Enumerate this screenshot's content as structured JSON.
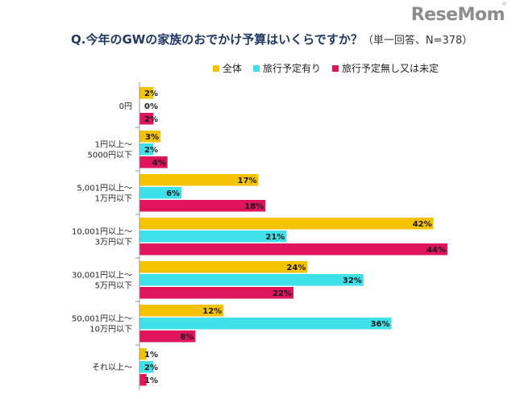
{
  "logo": "ReseMom",
  "title": "Q.今年のGWの家族のおでかけ予算はいくらですか？",
  "subtitle": "（単一回答、N=378）",
  "chart_data": {
    "type": "bar",
    "orientation": "horizontal",
    "xlim": [
      0,
      44
    ],
    "legend_position": "top-right",
    "categories": [
      [
        "0円"
      ],
      [
        "1円以上～",
        "5000円以下"
      ],
      [
        "5,001円以上～",
        "1万円以下"
      ],
      [
        "10,001円以上～",
        "3万円以下"
      ],
      [
        "30,001円以上～",
        "5万円以下"
      ],
      [
        "50,001円以上～",
        "10万円以下"
      ],
      [
        "それ以上～"
      ]
    ],
    "series": [
      {
        "name": "全体",
        "color": "#f5c200",
        "values": [
          2,
          3,
          17,
          42,
          24,
          12,
          1
        ],
        "labels": [
          "2%",
          "3%",
          "17%",
          "42%",
          "24%",
          "12%",
          "1%"
        ]
      },
      {
        "name": "旅行予定有り",
        "color": "#3ee0ea",
        "values": [
          0,
          2,
          6,
          21,
          32,
          36,
          2
        ],
        "labels": [
          "0%",
          "2%",
          "6%",
          "21%",
          "32%",
          "36%",
          "2%"
        ]
      },
      {
        "name": "旅行予定無し又は未定",
        "color": "#e0145a",
        "values": [
          2,
          4,
          18,
          44,
          22,
          8,
          1
        ],
        "labels": [
          "2%",
          "4%",
          "18%",
          "44%",
          "22%",
          "8%",
          "1%"
        ]
      }
    ]
  }
}
